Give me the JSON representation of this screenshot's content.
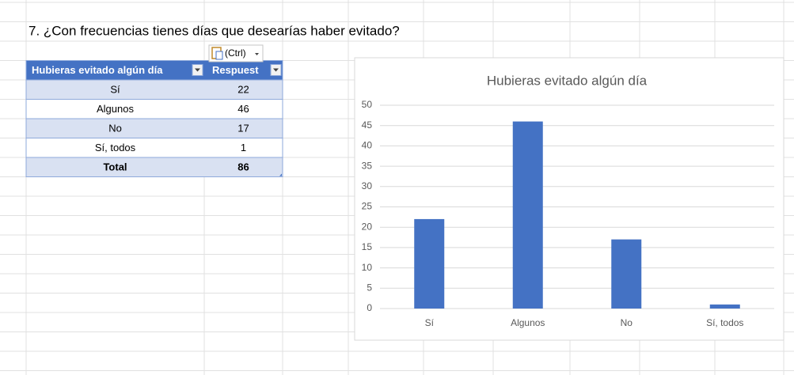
{
  "question": "7. ¿Con frecuencias tienes días que desearías haber evitado?",
  "paste_button": "(Ctrl)",
  "table": {
    "header": [
      "Hubieras evitado algún día",
      "Respuest"
    ],
    "rows": [
      [
        "Sí",
        "22"
      ],
      [
        "Algunos",
        "46"
      ],
      [
        "No",
        "17"
      ],
      [
        "Sí, todos",
        "1"
      ],
      [
        "Total",
        "86"
      ]
    ]
  },
  "chart_data": {
    "type": "bar",
    "title": "Hubieras evitado algún día",
    "categories": [
      "Sí",
      "Algunos",
      "No",
      "Sí, todos"
    ],
    "values": [
      22,
      46,
      17,
      1
    ],
    "color": "#4472c4",
    "ylim": [
      0,
      50
    ],
    "yticks": [
      0,
      5,
      10,
      15,
      20,
      25,
      30,
      35,
      40,
      45,
      50
    ],
    "grid": true
  }
}
